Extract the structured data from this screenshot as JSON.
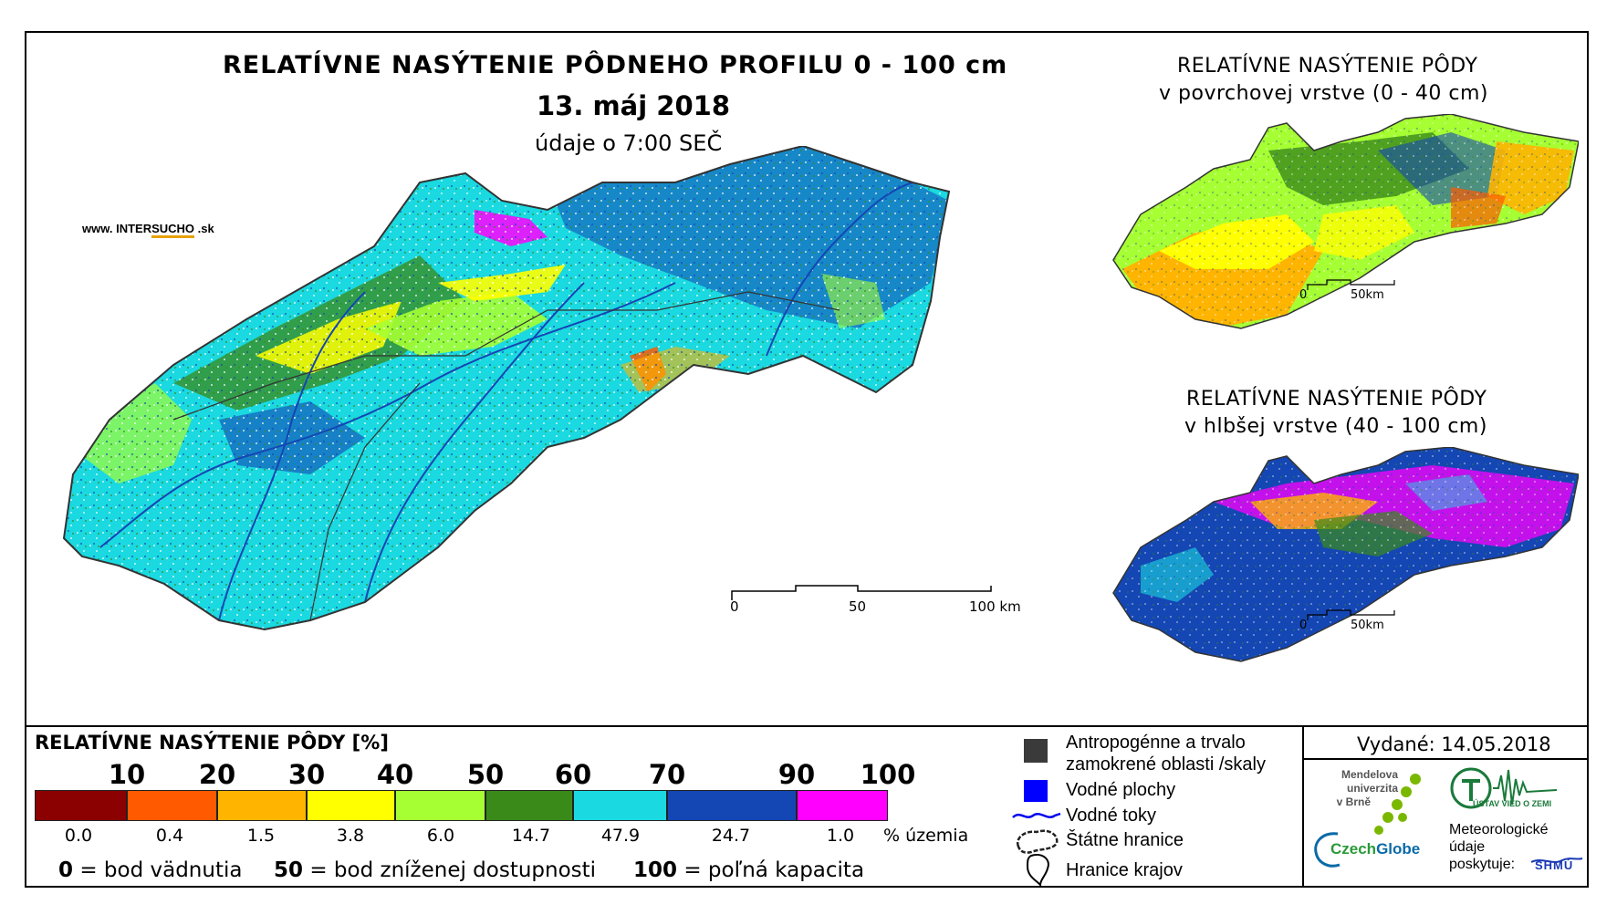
{
  "main_map": {
    "title": "RELATÍVNE NASÝTENIE PÔDNEHO PROFILU 0 - 100 cm",
    "date": "13. máj 2018",
    "time_note": "údaje o 7:00 SEČ",
    "website_prefix": "www. INTER",
    "website_brand": "SUCHO",
    "website_suffix": " .sk",
    "scale": [
      "0",
      "50",
      "100 km"
    ]
  },
  "surface_map": {
    "title_line1": "RELATÍVNE NASÝTENIE PÔDY",
    "title_line2": "v povrchovej vrstve (0 - 40 cm)",
    "scale": [
      "0",
      "50km"
    ]
  },
  "deep_map": {
    "title_line1": "RELATÍVNE NASÝTENIE PÔDY",
    "title_line2": "v hlbšej vrstve (40 - 100 cm)",
    "scale": [
      "0",
      "50km"
    ]
  },
  "legend": {
    "title": "RELATÍVNE NASÝTENIE PÔDY [%]",
    "thresholds": [
      "10",
      "20",
      "30",
      "40",
      "50",
      "60",
      "70",
      "90",
      "100"
    ],
    "classes": [
      {
        "color": "#8b0000",
        "pct": "0.0"
      },
      {
        "color": "#ff5a00",
        "pct": "0.4"
      },
      {
        "color": "#ffb400",
        "pct": "1.5"
      },
      {
        "color": "#ffff00",
        "pct": "3.8"
      },
      {
        "color": "#a6ff33",
        "pct": "6.0"
      },
      {
        "color": "#3a8a1a",
        "pct": "14.7"
      },
      {
        "color": "#1ad9e0",
        "pct": "47.9"
      },
      {
        "color": "#1446b4",
        "pct": "24.7"
      },
      {
        "color": "#ff00ff",
        "pct": "1.0"
      }
    ],
    "pct_unit": "% územia",
    "footnotes": [
      {
        "value": "0",
        "text": " = bod vädnutia"
      },
      {
        "value": "50",
        "text": " = bod zníženej dostupnosti"
      },
      {
        "value": "100",
        "text": " = poľná kapacita"
      }
    ]
  },
  "map_legend": {
    "anthropogenic_line1": "Antropogénne a trvalo",
    "anthropogenic_line2": "zamokrené oblasti /skaly",
    "water_bodies": "Vodné plochy",
    "rivers": "Vodné toky",
    "state_borders": "Štátne hranice",
    "region_borders": "Hranice krajov"
  },
  "credits": {
    "issued": "Vydané: 14.05.2018",
    "mendel_line1": "Mendelova",
    "mendel_line2": "univerzita",
    "mendel_line3": "v Brně",
    "czechglobe_a": "Czech",
    "czechglobe_b": "Globe",
    "ustav": "ÚSTAV VIED O ZEMI",
    "meteo_line1": "Meteorologické",
    "meteo_line2": "údaje",
    "meteo_line3": "poskytuje:",
    "shmu": "SHMÚ"
  }
}
